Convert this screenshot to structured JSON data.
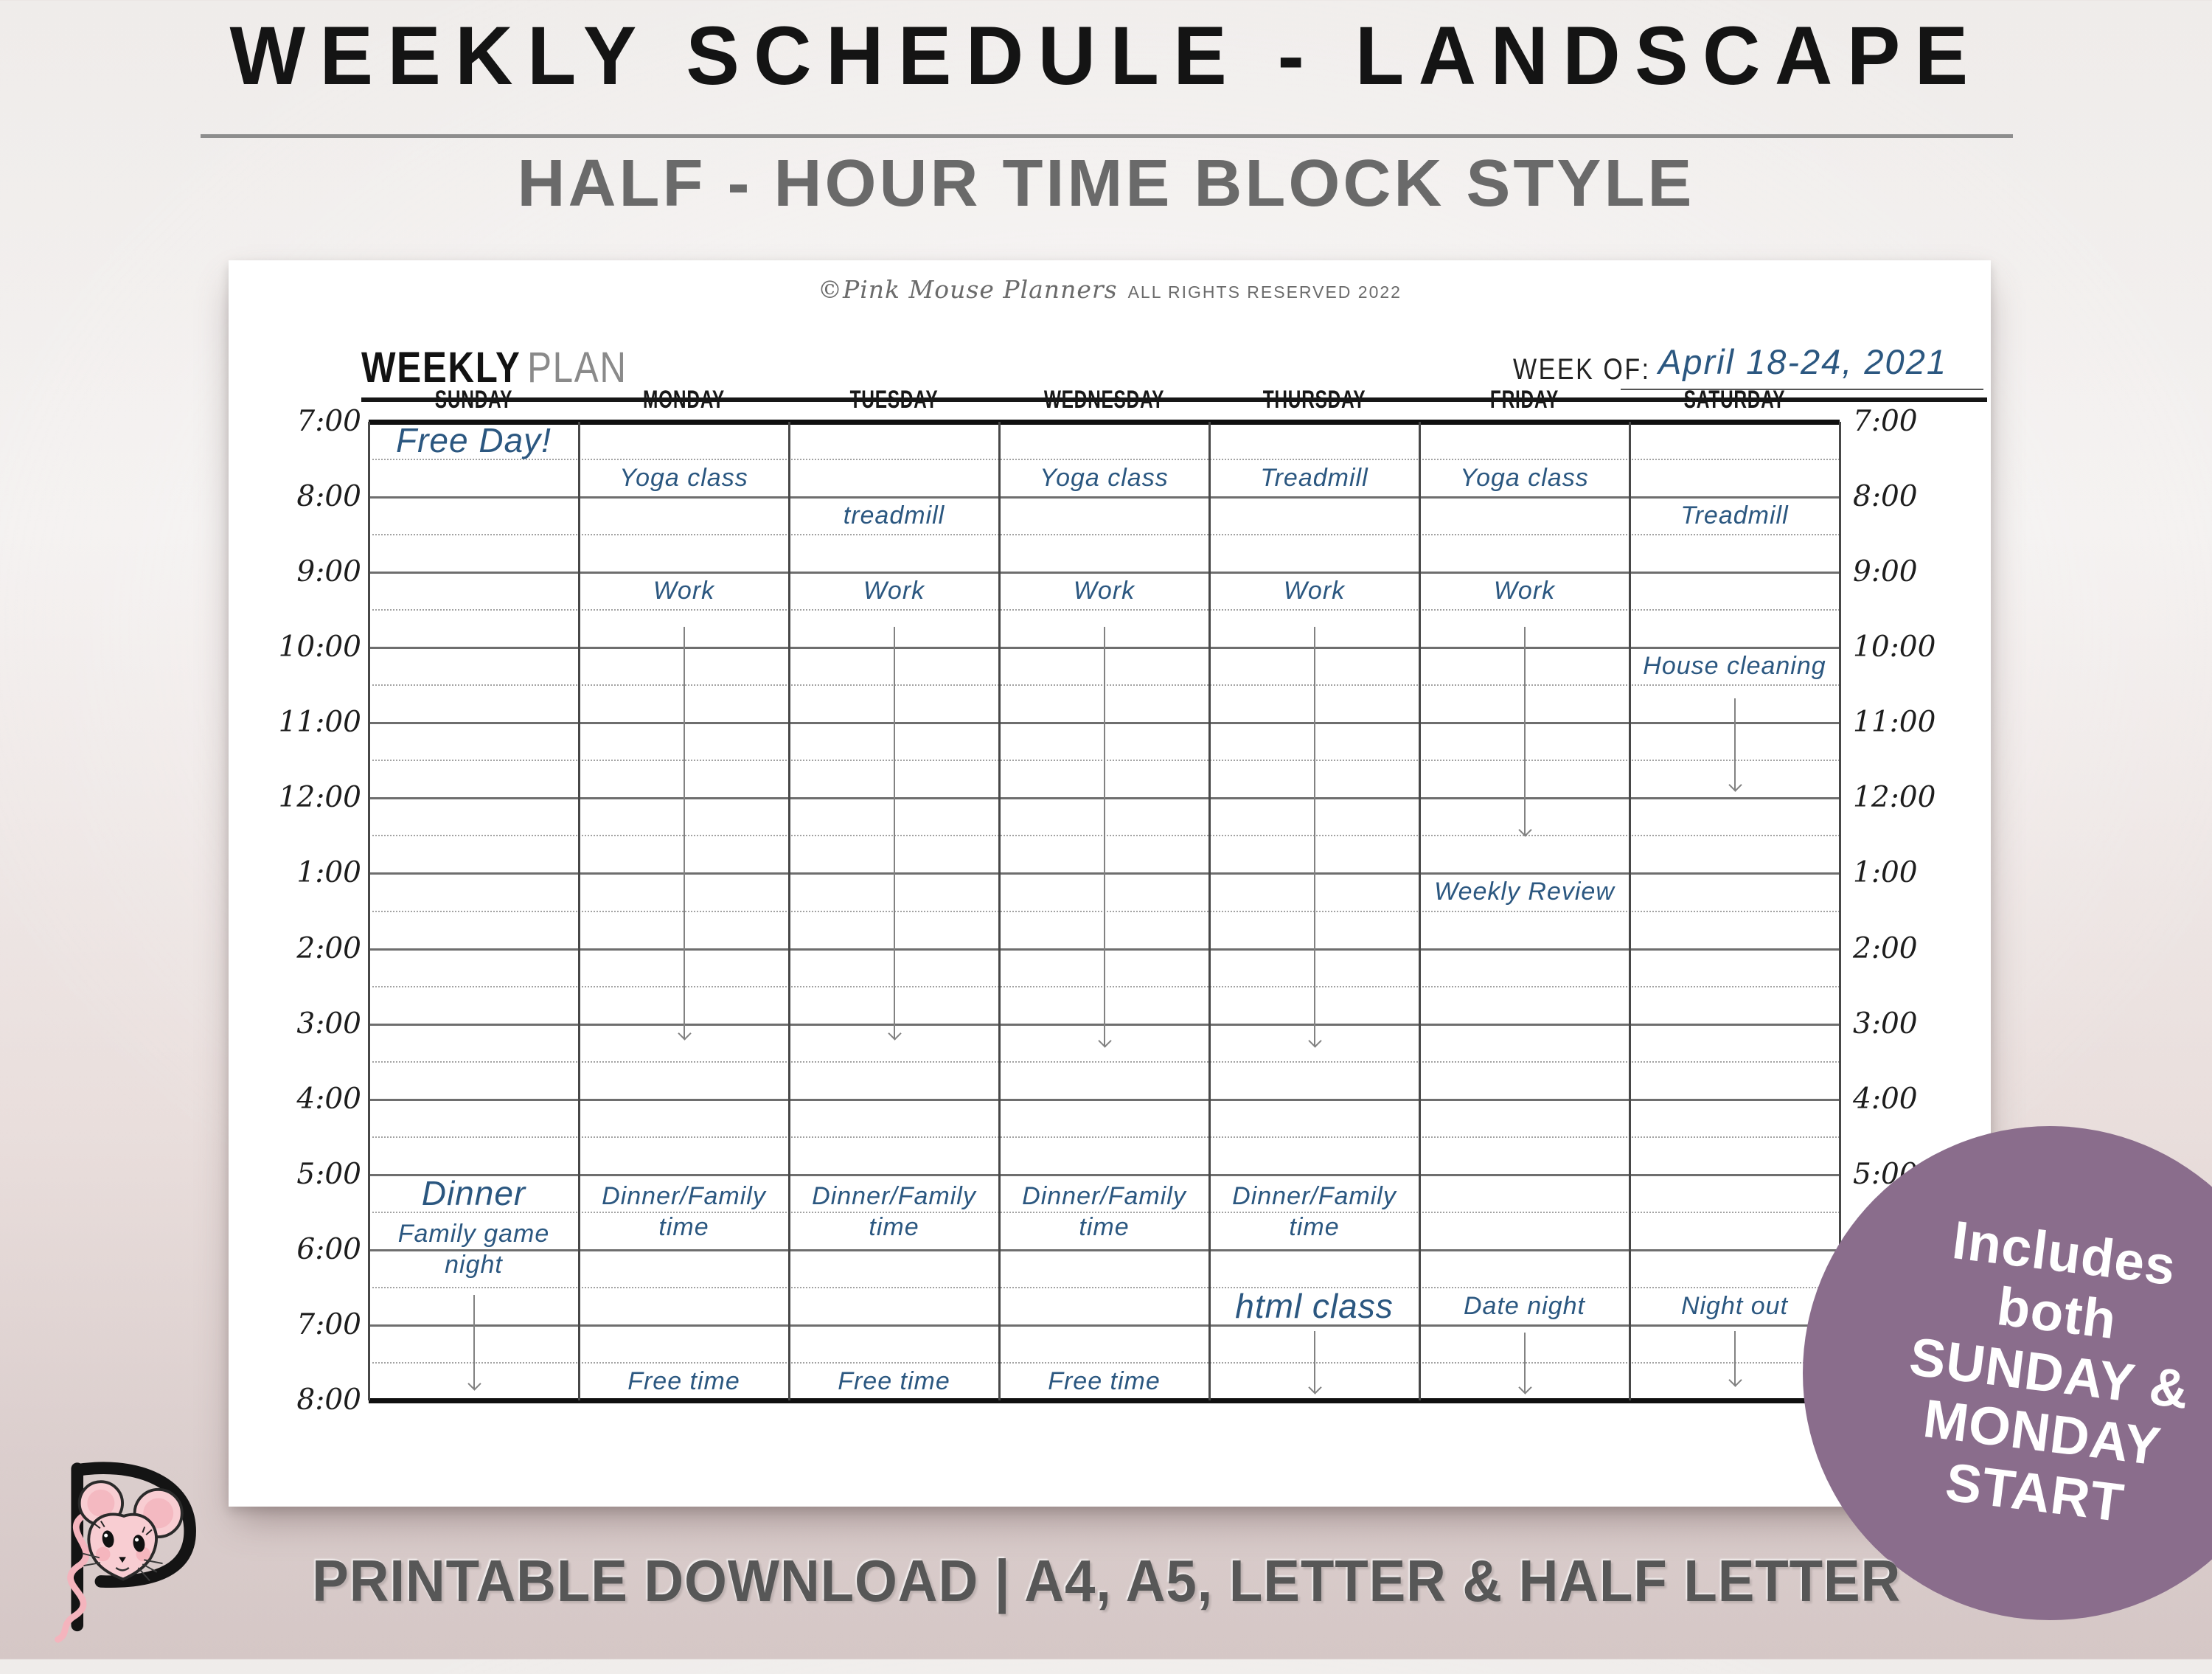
{
  "hero": {
    "title": "WEEKLY SCHEDULE - LANDSCAPE",
    "subtitle": "HALF - HOUR TIME BLOCK STYLE"
  },
  "page": {
    "copyright_script": "©Pink Mouse Planners",
    "copyright_rest": "ALL RIGHTS RESERVED 2022",
    "plan_title_bold": "WEEKLY",
    "plan_title_light": "PLAN",
    "week_of_label": "WEEK OF:",
    "week_of_value": "April 18-24, 2021",
    "days": [
      "SUNDAY",
      "MONDAY",
      "TUESDAY",
      "WEDNESDAY",
      "THURSDAY",
      "FRIDAY",
      "SATURDAY"
    ],
    "time_labels": [
      "7:00",
      "8:00",
      "9:00",
      "10:00",
      "11:00",
      "12:00",
      "1:00",
      "2:00",
      "3:00",
      "4:00",
      "5:00",
      "6:00",
      "7:00",
      "8:00"
    ],
    "entries": [
      {
        "day": 0,
        "slot": 0,
        "span": 1,
        "lines": [
          "Free Day!"
        ],
        "size": "lg"
      },
      {
        "day": 1,
        "slot": 1,
        "span": 1,
        "lines": [
          "Yoga class"
        ]
      },
      {
        "day": 3,
        "slot": 1,
        "span": 1,
        "lines": [
          "Yoga class"
        ]
      },
      {
        "day": 4,
        "slot": 1,
        "span": 1,
        "lines": [
          "Treadmill"
        ]
      },
      {
        "day": 5,
        "slot": 1,
        "span": 1,
        "lines": [
          "Yoga class"
        ]
      },
      {
        "day": 2,
        "slot": 2,
        "span": 1,
        "lines": [
          "treadmill"
        ]
      },
      {
        "day": 6,
        "slot": 2,
        "span": 1,
        "lines": [
          "Treadmill"
        ]
      },
      {
        "day": 1,
        "slot": 4,
        "span": 1,
        "lines": [
          "Work"
        ]
      },
      {
        "day": 2,
        "slot": 4,
        "span": 1,
        "lines": [
          "Work"
        ]
      },
      {
        "day": 3,
        "slot": 4,
        "span": 1,
        "lines": [
          "Work"
        ]
      },
      {
        "day": 4,
        "slot": 4,
        "span": 1,
        "lines": [
          "Work"
        ]
      },
      {
        "day": 5,
        "slot": 4,
        "span": 1,
        "lines": [
          "Work"
        ]
      },
      {
        "day": 6,
        "slot": 6,
        "span": 1,
        "lines": [
          "House cleaning"
        ]
      },
      {
        "day": 5,
        "slot": 12,
        "span": 1,
        "lines": [
          "Weekly Review"
        ]
      },
      {
        "day": 0,
        "slot": 20,
        "span": 1,
        "lines": [
          "Dinner"
        ],
        "size": "lg"
      },
      {
        "day": 0,
        "slot": 21,
        "span": 2,
        "lines": [
          "Family game",
          "night"
        ]
      },
      {
        "day": 1,
        "slot": 20,
        "span": 2,
        "lines": [
          "Dinner/Family",
          "time"
        ]
      },
      {
        "day": 2,
        "slot": 20,
        "span": 2,
        "lines": [
          "Dinner/Family",
          "time"
        ]
      },
      {
        "day": 3,
        "slot": 20,
        "span": 2,
        "lines": [
          "Dinner/Family",
          "time"
        ]
      },
      {
        "day": 4,
        "slot": 20,
        "span": 2,
        "lines": [
          "Dinner/Family",
          "time"
        ]
      },
      {
        "day": 4,
        "slot": 23,
        "span": 1,
        "lines": [
          "html class"
        ],
        "size": "lg"
      },
      {
        "day": 5,
        "slot": 23,
        "span": 1,
        "lines": [
          "Date night"
        ]
      },
      {
        "day": 6,
        "slot": 23,
        "span": 1,
        "lines": [
          "Night out"
        ]
      },
      {
        "day": 1,
        "slot": 25,
        "span": 1,
        "lines": [
          "Free time"
        ]
      },
      {
        "day": 2,
        "slot": 25,
        "span": 1,
        "lines": [
          "Free time"
        ]
      },
      {
        "day": 3,
        "slot": 25,
        "span": 1,
        "lines": [
          "Free time"
        ]
      }
    ],
    "arrows": [
      {
        "day": 1,
        "from": 5.45,
        "to": 16.4
      },
      {
        "day": 2,
        "from": 5.45,
        "to": 16.4
      },
      {
        "day": 3,
        "from": 5.45,
        "to": 16.6
      },
      {
        "day": 4,
        "from": 5.45,
        "to": 16.6
      },
      {
        "day": 5,
        "from": 5.45,
        "to": 11.0
      },
      {
        "day": 6,
        "from": 7.35,
        "to": 9.8
      },
      {
        "day": 0,
        "from": 23.2,
        "to": 25.7
      },
      {
        "day": 4,
        "from": 24.15,
        "to": 25.8
      },
      {
        "day": 5,
        "from": 24.2,
        "to": 25.8
      },
      {
        "day": 6,
        "from": 24.15,
        "to": 25.6
      }
    ]
  },
  "badge": {
    "lines": [
      "Includes",
      "both",
      "SUNDAY &",
      "MONDAY",
      "START"
    ],
    "color": "#8a6d8c"
  },
  "footer": {
    "text": "PRINTABLE DOWNLOAD | A4, A5, LETTER & HALF LETTER"
  },
  "colors": {
    "handwriting_blue": "#2b5780",
    "badge_purple": "#8a6d8c",
    "mouse_pink": "#f8cdd2"
  }
}
